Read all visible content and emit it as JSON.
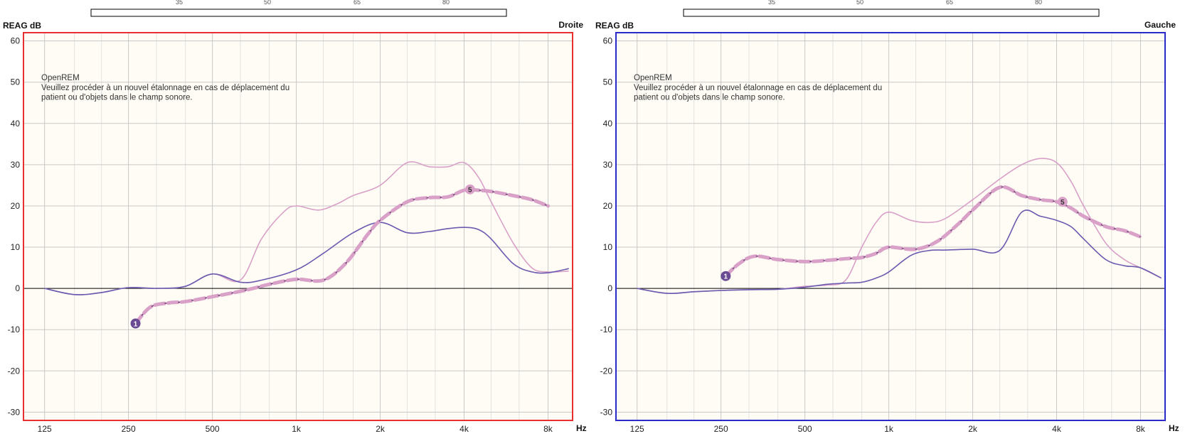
{
  "chart_data": [
    {
      "type": "line",
      "ylabel": "REAG dB",
      "side_label": "Droite",
      "xunit": "Hz",
      "frame_color": "#e83030",
      "xscale": "log",
      "xlim": [
        105,
        9800
      ],
      "ylim": [
        -32,
        62
      ],
      "yticks": [
        60,
        50,
        40,
        30,
        20,
        10,
        0,
        -10,
        -20,
        -30
      ],
      "xticks": [
        {
          "value": 125,
          "label": "125"
        },
        {
          "value": 250,
          "label": "250"
        },
        {
          "value": 500,
          "label": "500"
        },
        {
          "value": 1000,
          "label": "1k"
        },
        {
          "value": 2000,
          "label": "2k"
        },
        {
          "value": 4000,
          "label": "4k"
        },
        {
          "value": 8000,
          "label": "8k"
        }
      ],
      "grid": true,
      "notice": {
        "title": "OpenREM",
        "lines": [
          "Veuillez procéder à un nouvel étalonnage en cas de déplacement du",
          "patient ou d'objets dans le champ sonore."
        ]
      },
      "level_scale": {
        "labels": [
          "35",
          "50",
          "65",
          "80"
        ]
      },
      "series": [
        {
          "color": "#d9a0c8",
          "style": "solid",
          "x": [
            125,
            160,
            200,
            250,
            315,
            400,
            500,
            630,
            750,
            900,
            1000,
            1200,
            1400,
            1600,
            2000,
            2500,
            3000,
            3500,
            4000,
            4500,
            5000,
            6000,
            7000,
            8000,
            9500
          ],
          "y": [
            0,
            -1.5,
            -1,
            0.2,
            0,
            0.5,
            3.5,
            2,
            12,
            18.5,
            20,
            19,
            20.5,
            22.5,
            25,
            30.5,
            29.5,
            29.5,
            30.5,
            27,
            21,
            11,
            5,
            4,
            4.2
          ]
        },
        {
          "color": "#6a5ab0",
          "style": "solid",
          "x": [
            125,
            160,
            200,
            250,
            315,
            400,
            500,
            630,
            750,
            1000,
            1250,
            1600,
            2000,
            2500,
            3000,
            3500,
            4000,
            4500,
            5000,
            6000,
            7000,
            8000,
            9500
          ],
          "y": [
            0,
            -1.5,
            -1,
            0.2,
            0,
            0.5,
            3.5,
            1.5,
            2,
            4.5,
            8.5,
            13.5,
            16,
            13.5,
            13.8,
            14.5,
            14.8,
            14.3,
            12,
            6,
            4,
            3.8,
            4.8
          ]
        },
        {
          "color": "#d9a0c8",
          "style": "dashed-thick",
          "markers": [
            {
              "x": 265,
              "y": -8.5,
              "label": "1"
            },
            {
              "x": 4200,
              "y": 24,
              "label": "5"
            }
          ],
          "x": [
            265,
            300,
            350,
            400,
            500,
            600,
            700,
            800,
            1000,
            1250,
            1500,
            1800,
            2000,
            2500,
            3000,
            3500,
            4000,
            4500,
            5000,
            6000,
            7000,
            8000
          ],
          "y": [
            -8.5,
            -4.5,
            -3.5,
            -3.2,
            -2,
            -1,
            0,
            1,
            2.2,
            2,
            6,
            13,
            16.5,
            21,
            22,
            22.2,
            23.8,
            23.8,
            23.5,
            22.5,
            21.5,
            20
          ]
        }
      ]
    },
    {
      "type": "line",
      "ylabel": "REAG dB",
      "side_label": "Gauche",
      "xunit": "Hz",
      "frame_color": "#2a2ac8",
      "xscale": "log",
      "xlim": [
        105,
        9800
      ],
      "ylim": [
        -32,
        62
      ],
      "yticks": [
        60,
        50,
        40,
        30,
        20,
        10,
        0,
        -10,
        -20,
        -30
      ],
      "xticks": [
        {
          "value": 125,
          "label": "125"
        },
        {
          "value": 250,
          "label": "250"
        },
        {
          "value": 500,
          "label": "500"
        },
        {
          "value": 1000,
          "label": "1k"
        },
        {
          "value": 2000,
          "label": "2k"
        },
        {
          "value": 4000,
          "label": "4k"
        },
        {
          "value": 8000,
          "label": "8k"
        }
      ],
      "grid": true,
      "notice": {
        "title": "OpenREM",
        "lines": [
          "Veuillez procéder à un nouvel étalonnage en cas de déplacement du",
          "patient ou d'objets dans le champ sonore."
        ]
      },
      "level_scale": {
        "labels": [
          "35",
          "50",
          "65",
          "80"
        ]
      },
      "series": [
        {
          "color": "#d9a0c8",
          "style": "solid",
          "x": [
            125,
            160,
            200,
            250,
            315,
            400,
            500,
            600,
            700,
            800,
            900,
            1000,
            1200,
            1400,
            1600,
            2000,
            2500,
            3000,
            3500,
            4000,
            4500,
            5000,
            6000,
            7000,
            8000,
            9500
          ],
          "y": [
            0,
            -1.2,
            -0.8,
            -0.5,
            -0.3,
            -0.2,
            0.5,
            0.8,
            2,
            10,
            16,
            18.5,
            16.5,
            16,
            17,
            21.5,
            26.5,
            30,
            31.5,
            30.5,
            26,
            20,
            11,
            7,
            5,
            2.5
          ]
        },
        {
          "color": "#6a5ab0",
          "style": "solid",
          "x": [
            125,
            160,
            200,
            250,
            315,
            400,
            500,
            600,
            700,
            800,
            900,
            1000,
            1200,
            1400,
            1600,
            2000,
            2500,
            3000,
            3500,
            4000,
            4500,
            5000,
            6000,
            7000,
            8000,
            9500
          ],
          "y": [
            0,
            -1.2,
            -0.8,
            -0.5,
            -0.3,
            -0.2,
            0.3,
            1,
            1.3,
            1.5,
            2.5,
            4,
            8,
            9.2,
            9.3,
            9.5,
            9.2,
            18.5,
            17.5,
            16.5,
            15,
            12,
            7,
            5.5,
            5,
            2.5
          ]
        },
        {
          "color": "#d9a0c8",
          "style": "dashed-thick",
          "markers": [
            {
              "x": 260,
              "y": 3,
              "label": "1"
            },
            {
              "x": 4200,
              "y": 21,
              "label": "5"
            }
          ],
          "x": [
            260,
            290,
            330,
            400,
            500,
            600,
            700,
            800,
            900,
            1000,
            1250,
            1500,
            1800,
            2000,
            2500,
            3000,
            3500,
            4000,
            4500,
            5000,
            6000,
            7000,
            8000
          ],
          "y": [
            3,
            6,
            7.8,
            7,
            6.5,
            6.8,
            7.2,
            7.5,
            8.5,
            10,
            9.5,
            11.5,
            16,
            19,
            24.5,
            22.5,
            21.5,
            21,
            19.5,
            17.5,
            15,
            14,
            12.5
          ]
        }
      ]
    }
  ]
}
